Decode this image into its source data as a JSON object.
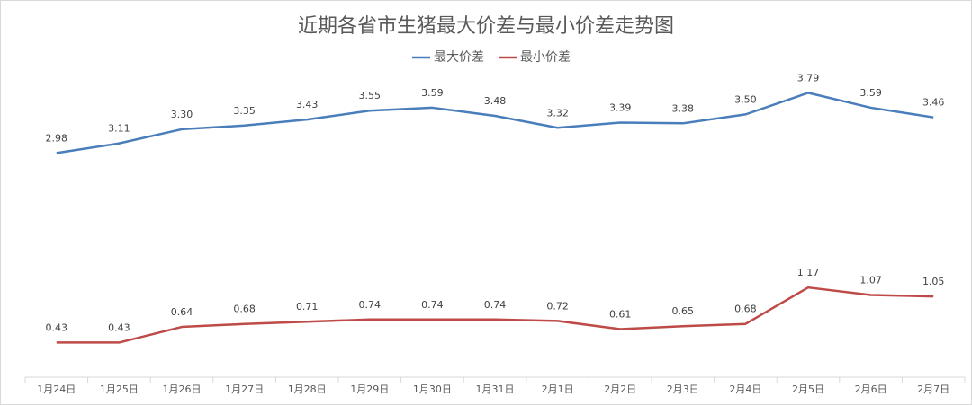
{
  "chart_data": {
    "type": "line",
    "title": "近期各省市生猪最大价差与最小价差走势图",
    "categories": [
      "1月24日",
      "1月25日",
      "1月26日",
      "1月27日",
      "1月28日",
      "1月29日",
      "1月30日",
      "1月31日",
      "2月1日",
      "2月2日",
      "2月3日",
      "2月4日",
      "2月5日",
      "2月6日",
      "2月7日"
    ],
    "series": [
      {
        "name": "最大价差",
        "color": "#4a7ebb",
        "values": [
          2.98,
          3.11,
          3.3,
          3.35,
          3.43,
          3.55,
          3.59,
          3.48,
          3.32,
          3.39,
          3.38,
          3.5,
          3.79,
          3.59,
          3.46
        ],
        "value_labels": [
          "2.98",
          "3.11",
          "3.30",
          "3.35",
          "3.43",
          "3.55",
          "3.59",
          "3.48",
          "3.32",
          "3.39",
          "3.38",
          "3.50",
          "3.79",
          "3.59",
          "3.46"
        ]
      },
      {
        "name": "最小价差",
        "color": "#be4b48",
        "values": [
          0.43,
          0.43,
          0.64,
          0.68,
          0.71,
          0.74,
          0.74,
          0.74,
          0.72,
          0.61,
          0.65,
          0.68,
          1.17,
          1.07,
          1.05
        ],
        "value_labels": [
          "0.43",
          "0.43",
          "0.64",
          "0.68",
          "0.71",
          "0.74",
          "0.74",
          "0.74",
          "0.72",
          "0.61",
          "0.65",
          "0.68",
          "1.17",
          "1.07",
          "1.05"
        ]
      }
    ],
    "ylim": [
      0,
      4
    ],
    "legend": "top"
  }
}
